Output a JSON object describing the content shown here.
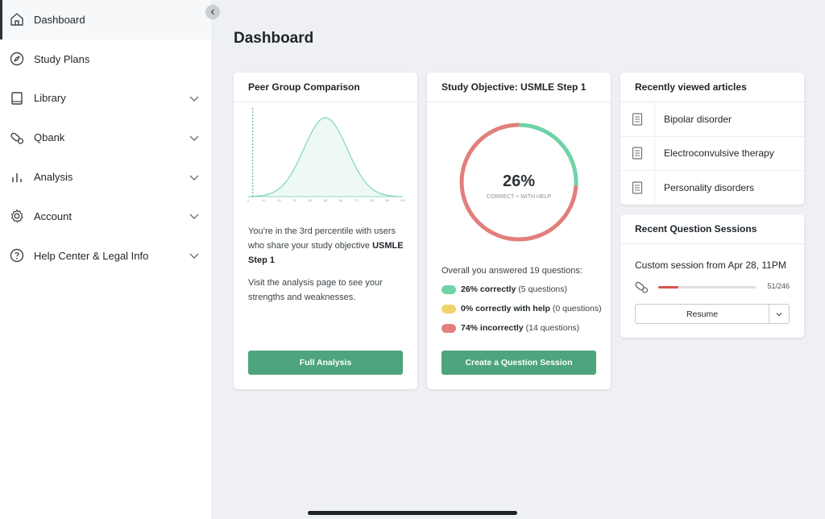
{
  "sidebar": {
    "items": [
      {
        "label": "Dashboard",
        "icon": "home-icon",
        "active": true
      },
      {
        "label": "Study Plans",
        "icon": "compass-icon"
      },
      {
        "label": "Library",
        "icon": "book-icon",
        "expandable": true
      },
      {
        "label": "Qbank",
        "icon": "pill-icon",
        "expandable": true
      },
      {
        "label": "Analysis",
        "icon": "bar-chart-icon",
        "expandable": true
      },
      {
        "label": "Account",
        "icon": "gear-icon",
        "expandable": true
      },
      {
        "label": "Help Center & Legal Info",
        "icon": "question-circle-icon",
        "expandable": true
      }
    ]
  },
  "main": {
    "title": "Dashboard"
  },
  "peer_card": {
    "title": "Peer Group Comparison",
    "text1_prefix": "You’re in the 3rd percentile with users who share your study objective ",
    "text1_bold": "USMLE Step 1",
    "text2": "Visit the analysis page to see your strengths and weaknesses.",
    "button": "Full Analysis",
    "axis_ticks": [
      "0",
      "10",
      "20",
      "30",
      "40",
      "50",
      "60",
      "70",
      "80",
      "90",
      "100"
    ],
    "user_percentile": 3
  },
  "objective_card": {
    "title": "Study Objective: USMLE Step 1",
    "percent": "26%",
    "ring_caption": "CORRECT + WITH HELP",
    "summary": "Overall you answered 19 questions:",
    "legend": [
      {
        "bold": "26% correctly",
        "rest": "(5 questions)",
        "color": "#6fd3a8",
        "fraction": 0.26
      },
      {
        "bold": "0% correctly with help",
        "rest": "(0 questions)",
        "color": "#f0d36a",
        "fraction": 0.0
      },
      {
        "bold": "74% incorrectly",
        "rest": "(14 questions)",
        "color": "#e27f7b",
        "fraction": 0.74
      }
    ],
    "button": "Create a Question Session"
  },
  "articles_card": {
    "title": "Recently viewed articles",
    "items": [
      "Bipolar disorder",
      "Electroconvulsive therapy",
      "Personality disorders"
    ]
  },
  "sessions_card": {
    "title": "Recent Question Sessions",
    "session_name": "Custom session from Apr 28, 11PM",
    "progress_text": "51/246",
    "progress_fraction": 0.207,
    "resume_label": "Resume"
  },
  "colors": {
    "accent_green": "#4ea47c",
    "correct": "#6fd3a8",
    "incorrect": "#e27f7b",
    "with_help": "#f0d36a"
  }
}
